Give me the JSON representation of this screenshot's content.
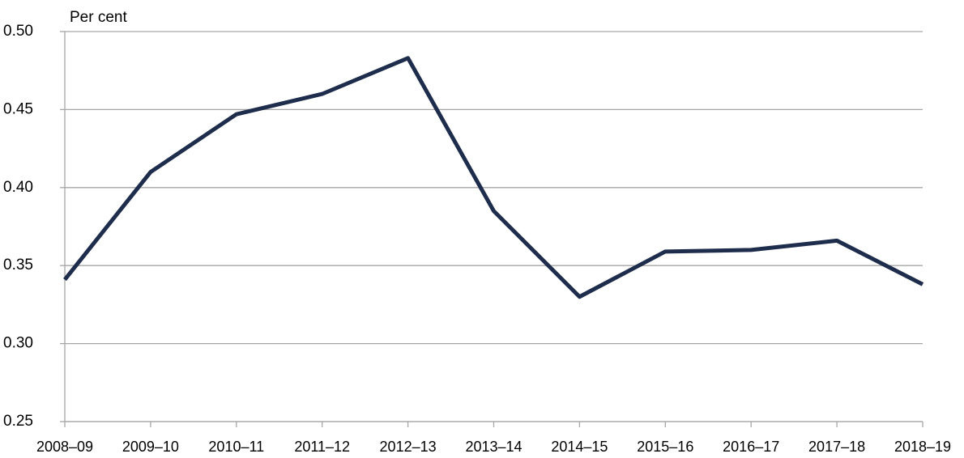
{
  "chart_data": {
    "type": "line",
    "y_label": "Per cent",
    "categories": [
      "2008–09",
      "2009–10",
      "2010–11",
      "2011–12",
      "2012–13",
      "2013–14",
      "2014–15",
      "2015–16",
      "2016–17",
      "2017–18",
      "2018–19"
    ],
    "series": [
      {
        "color": "#1f2d4d",
        "values": [
          0.341,
          0.41,
          0.447,
          0.46,
          0.483,
          0.385,
          0.33,
          0.359,
          0.36,
          0.366,
          0.338
        ]
      }
    ],
    "ylim": [
      0.25,
      0.5
    ],
    "yticks": [
      0.25,
      {
        "value": 0.3,
        "label": "0.30"
      },
      0.35,
      {
        "value": 0.4,
        "label": "0.40"
      },
      0.45,
      {
        "value": 0.5,
        "label": "0.50"
      }
    ],
    "grid": true
  }
}
